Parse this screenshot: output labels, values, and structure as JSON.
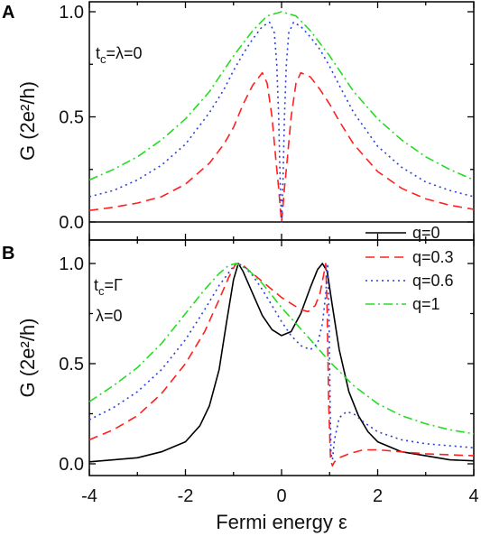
{
  "chart_data": [
    {
      "type": "line",
      "panel_label": "A",
      "title": "",
      "xlabel": "",
      "ylabel": "G (2e²/h)",
      "xlim": [
        -4,
        4
      ],
      "ylim": [
        0,
        1
      ],
      "annotation": "t_c=λ=0",
      "yticks": [
        "0.0",
        "0.5",
        "1.0"
      ],
      "series": [
        {
          "name": "q=0",
          "color": "#000000",
          "dash": "solid",
          "x": [
            -4,
            4
          ],
          "y": [
            0,
            0
          ]
        },
        {
          "name": "q=0.3",
          "color": "#ff2020",
          "dash": "dashed",
          "x": [
            -4,
            -3.5,
            -3,
            -2.5,
            -2,
            -1.5,
            -1.2,
            -1,
            -0.8,
            -0.6,
            -0.4,
            -0.3,
            -0.2,
            -0.12,
            -0.06,
            -0.02,
            0,
            0.02,
            0.06,
            0.12,
            0.2,
            0.3,
            0.4,
            0.6,
            0.8,
            1,
            1.2,
            1.5,
            2,
            2.5,
            3,
            3.5,
            4
          ],
          "y": [
            0.055,
            0.07,
            0.09,
            0.12,
            0.18,
            0.28,
            0.37,
            0.45,
            0.56,
            0.65,
            0.71,
            0.66,
            0.5,
            0.3,
            0.16,
            0.05,
            0.0,
            0.05,
            0.16,
            0.3,
            0.5,
            0.66,
            0.71,
            0.69,
            0.63,
            0.56,
            0.48,
            0.37,
            0.24,
            0.16,
            0.11,
            0.08,
            0.06
          ]
        },
        {
          "name": "q=0.6",
          "color": "#2a3fe0",
          "dash": "dotted",
          "x": [
            -4,
            -3.5,
            -3,
            -2.5,
            -2,
            -1.5,
            -1.2,
            -1,
            -0.8,
            -0.6,
            -0.4,
            -0.25,
            -0.15,
            -0.1,
            -0.06,
            -0.03,
            0,
            0.03,
            0.06,
            0.1,
            0.15,
            0.25,
            0.4,
            0.6,
            0.8,
            1,
            1.2,
            1.5,
            2,
            2.5,
            3,
            3.5,
            4
          ],
          "y": [
            0.12,
            0.15,
            0.2,
            0.27,
            0.37,
            0.52,
            0.63,
            0.72,
            0.8,
            0.87,
            0.93,
            0.95,
            0.9,
            0.75,
            0.5,
            0.2,
            0.0,
            0.2,
            0.5,
            0.75,
            0.9,
            0.95,
            0.93,
            0.88,
            0.82,
            0.74,
            0.65,
            0.52,
            0.36,
            0.26,
            0.19,
            0.15,
            0.12
          ]
        },
        {
          "name": "q=1",
          "color": "#22dd22",
          "dash": "dashdot",
          "x": [
            -4,
            -3.5,
            -3,
            -2.5,
            -2,
            -1.5,
            -1,
            -0.6,
            -0.3,
            0,
            0.3,
            0.6,
            1,
            1.5,
            2,
            2.5,
            3,
            3.5,
            4
          ],
          "y": [
            0.2,
            0.25,
            0.31,
            0.39,
            0.49,
            0.62,
            0.79,
            0.91,
            0.98,
            1.0,
            0.98,
            0.91,
            0.79,
            0.62,
            0.49,
            0.39,
            0.31,
            0.25,
            0.2
          ]
        }
      ]
    },
    {
      "type": "line",
      "panel_label": "B",
      "title": "",
      "xlabel": "Fermi energy ε",
      "ylabel": "G (2e²/h)",
      "xlim": [
        -4,
        4
      ],
      "ylim": [
        0,
        1
      ],
      "annotation_1": "t_c=Γ",
      "annotation_2": "λ=0",
      "xticks": [
        "-4",
        "-2",
        "0",
        "2",
        "4"
      ],
      "yticks": [
        "0.0",
        "0.5",
        "1.0"
      ],
      "legend_position": "top-right",
      "series": [
        {
          "name": "q=0",
          "color": "#000000",
          "dash": "solid",
          "x": [
            -4,
            -3.5,
            -3,
            -2.5,
            -2,
            -1.7,
            -1.5,
            -1.3,
            -1.15,
            -1.0,
            -0.9,
            -0.8,
            -0.6,
            -0.4,
            -0.2,
            0,
            0.2,
            0.4,
            0.6,
            0.75,
            0.85,
            0.95,
            1.05,
            1.2,
            1.4,
            1.6,
            1.8,
            2.0,
            2.5,
            3,
            3.5,
            4
          ],
          "y": [
            0.01,
            0.02,
            0.03,
            0.06,
            0.11,
            0.19,
            0.29,
            0.47,
            0.7,
            0.92,
            1.0,
            0.96,
            0.85,
            0.74,
            0.67,
            0.64,
            0.66,
            0.75,
            0.88,
            0.97,
            1.0,
            0.96,
            0.8,
            0.57,
            0.36,
            0.24,
            0.16,
            0.11,
            0.06,
            0.04,
            0.02,
            0.015
          ]
        },
        {
          "name": "q=0.3",
          "color": "#ff2020",
          "dash": "dashed",
          "x": [
            -4,
            -3.5,
            -3,
            -2.5,
            -2,
            -1.6,
            -1.3,
            -1.1,
            -0.95,
            -0.8,
            -0.6,
            -0.4,
            -0.2,
            0,
            0.2,
            0.4,
            0.55,
            0.7,
            0.8,
            0.88,
            0.92,
            0.95,
            0.98,
            1.02,
            1.06,
            1.1,
            1.2,
            1.4,
            1.7,
            2.0,
            2.5,
            3,
            3.5,
            4
          ],
          "y": [
            0.12,
            0.17,
            0.24,
            0.35,
            0.5,
            0.66,
            0.82,
            0.93,
            1.0,
            0.99,
            0.95,
            0.91,
            0.87,
            0.83,
            0.8,
            0.77,
            0.76,
            0.79,
            0.85,
            0.95,
            1.0,
            0.75,
            0.3,
            0.02,
            -0.01,
            0.01,
            0.03,
            0.05,
            0.07,
            0.07,
            0.06,
            0.05,
            0.045,
            0.04
          ]
        },
        {
          "name": "q=0.6",
          "color": "#2a3fe0",
          "dash": "dotted",
          "x": [
            -4,
            -3.5,
            -3,
            -2.5,
            -2,
            -1.6,
            -1.3,
            -1.05,
            -0.95,
            -0.8,
            -0.6,
            -0.4,
            -0.2,
            0,
            0.2,
            0.4,
            0.6,
            0.75,
            0.85,
            0.92,
            0.96,
            0.99,
            1.01,
            1.03,
            1.06,
            1.1,
            1.2,
            1.35,
            1.5,
            1.7,
            2,
            2.5,
            3,
            3.5,
            4
          ],
          "y": [
            0.22,
            0.28,
            0.36,
            0.47,
            0.62,
            0.77,
            0.89,
            0.97,
            1.0,
            0.99,
            0.94,
            0.87,
            0.79,
            0.71,
            0.64,
            0.59,
            0.57,
            0.6,
            0.7,
            0.85,
            1.0,
            0.7,
            0.3,
            0.05,
            0.02,
            0.12,
            0.23,
            0.26,
            0.25,
            0.21,
            0.16,
            0.12,
            0.1,
            0.09,
            0.08
          ]
        },
        {
          "name": "q=1",
          "color": "#22dd22",
          "dash": "dashdot",
          "x": [
            -4,
            -3.5,
            -3,
            -2.5,
            -2,
            -1.6,
            -1.3,
            -1.1,
            -0.95,
            -0.7,
            -0.4,
            -0.2,
            0,
            0.3,
            0.6,
            1.0,
            1.5,
            2,
            2.5,
            3,
            3.5,
            4
          ],
          "y": [
            0.31,
            0.39,
            0.48,
            0.6,
            0.75,
            0.87,
            0.95,
            0.99,
            1.0,
            0.97,
            0.9,
            0.84,
            0.78,
            0.7,
            0.62,
            0.51,
            0.39,
            0.3,
            0.24,
            0.2,
            0.17,
            0.15
          ]
        }
      ]
    }
  ]
}
